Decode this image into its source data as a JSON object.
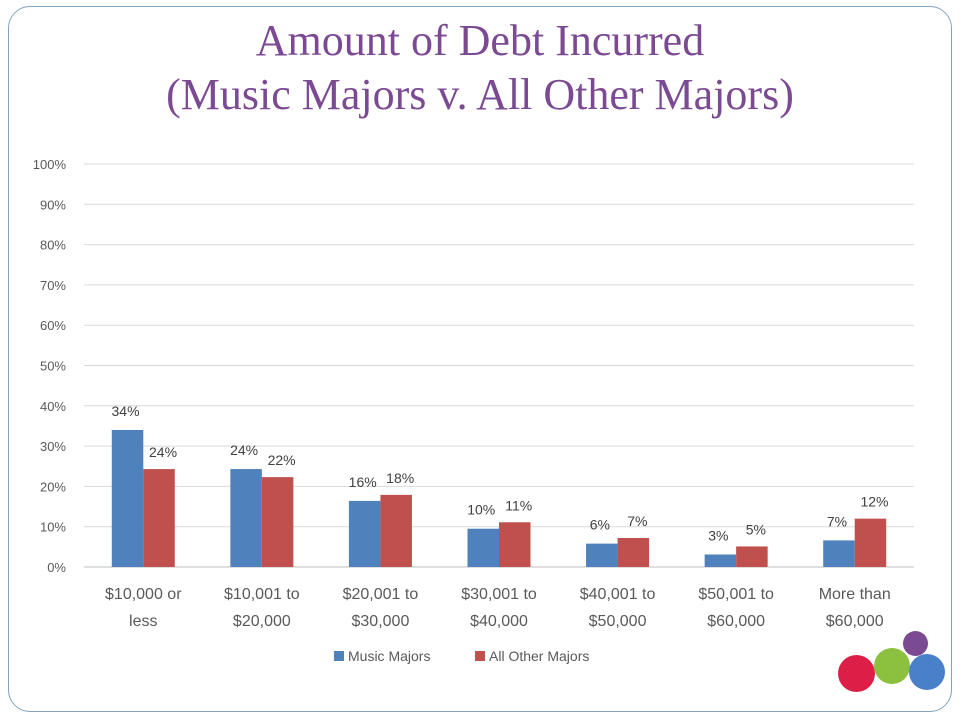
{
  "slide": {
    "title_line1": "Amount of Debt Incurred",
    "title_line2": "(Music Majors v. All Other Majors)"
  },
  "chart_data": {
    "type": "bar",
    "categories": [
      [
        "$10,000 or",
        "less"
      ],
      [
        "$10,001 to",
        "$20,000"
      ],
      [
        "$20,001 to",
        "$30,000"
      ],
      [
        "$30,001 to",
        "$40,000"
      ],
      [
        "$40,001 to",
        "$50,000"
      ],
      [
        "$50,001 to",
        "$60,000"
      ],
      [
        "More than",
        "$60,000"
      ]
    ],
    "series": [
      {
        "name": "Music Majors",
        "color": "#4f81bd",
        "values": [
          34,
          24.3,
          16.4,
          9.5,
          5.8,
          3.1,
          6.6
        ],
        "labels": [
          "34%",
          "24%",
          "16%",
          "10%",
          "6%",
          "3%",
          "7%"
        ]
      },
      {
        "name": "All Other Majors",
        "color": "#c0504d",
        "values": [
          24.3,
          22.3,
          17.9,
          11.1,
          7.2,
          5.1,
          12.0
        ],
        "labels": [
          "24%",
          "22%",
          "18%",
          "11%",
          "7%",
          "5%",
          "12%"
        ]
      }
    ],
    "ylim": [
      0,
      100
    ],
    "yticks": [
      "0%",
      "10%",
      "20%",
      "30%",
      "40%",
      "50%",
      "60%",
      "70%",
      "80%",
      "90%",
      "100%"
    ],
    "grid": true,
    "legend_position": "bottom"
  },
  "decoration": {
    "circle_colors": [
      "#7b4a93",
      "#dd1f47",
      "#8cc03f",
      "#4a7fc9"
    ]
  }
}
